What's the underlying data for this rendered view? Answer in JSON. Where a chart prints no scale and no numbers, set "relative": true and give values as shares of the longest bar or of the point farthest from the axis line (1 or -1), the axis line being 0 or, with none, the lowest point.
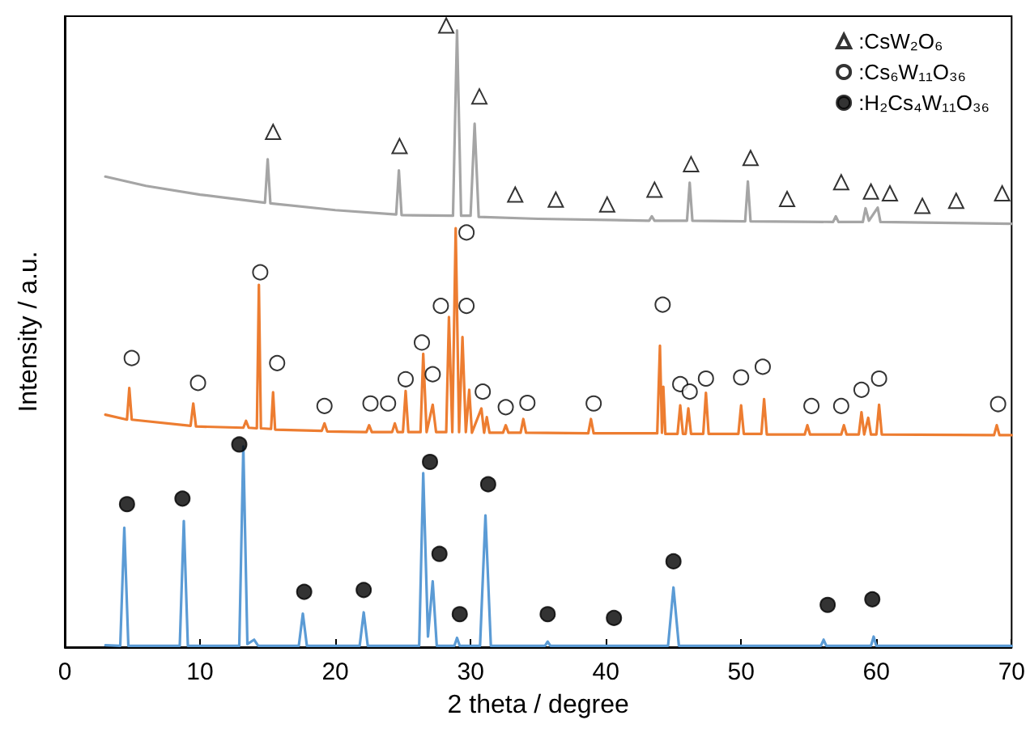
{
  "chart_data": {
    "type": "line",
    "relative": true,
    "xlabel": "2 theta / degree",
    "ylabel": "Intensity / a.u.",
    "xlim": [
      0,
      70
    ],
    "xticks": [
      0,
      10,
      20,
      30,
      40,
      50,
      60,
      70
    ],
    "grid": false,
    "legend": "top right",
    "line_style": "solid",
    "series": [
      {
        "color": "#5b9bd5",
        "x": [
          3.0,
          4.1,
          4.4,
          4.7,
          8.5,
          8.8,
          9.1,
          12.9,
          13.2,
          13.5,
          14.0,
          14.3,
          17.3,
          17.6,
          17.9,
          21.8,
          22.1,
          22.4,
          26.2,
          26.5,
          26.85,
          27.2,
          27.5,
          28.8,
          29.0,
          29.2,
          30.7,
          31.1,
          31.5,
          35.5,
          35.7,
          35.9,
          44.6,
          45.0,
          45.4,
          55.9,
          56.1,
          56.3,
          59.6,
          59.8,
          60.0,
          70
        ],
        "values": [
          0.003,
          0.002,
          0.192,
          0.002,
          0.002,
          0.203,
          0.002,
          0.002,
          0.323,
          0.005,
          0.012,
          0.002,
          0.002,
          0.054,
          0.002,
          0.002,
          0.056,
          0.002,
          0.002,
          0.28,
          0.017,
          0.106,
          0.002,
          0.002,
          0.015,
          0.002,
          0.002,
          0.212,
          0.002,
          0.002,
          0.009,
          0.002,
          0.002,
          0.096,
          0.002,
          0.002,
          0.012,
          0.002,
          0.002,
          0.017,
          0.002,
          0.002
        ]
      },
      {
        "color": "#ed7d31",
        "x": [
          3.0,
          4.6,
          4.77,
          4.95,
          9.3,
          9.5,
          9.7,
          13.2,
          13.4,
          13.6,
          14.2,
          14.35,
          14.5,
          15.25,
          15.4,
          15.55,
          19.0,
          19.2,
          19.4,
          22.3,
          22.5,
          22.7,
          24.2,
          24.4,
          24.6,
          25.0,
          25.2,
          25.4,
          26.3,
          26.5,
          26.75,
          27.2,
          27.45,
          28.2,
          28.4,
          28.65,
          28.9,
          29.15,
          29.4,
          29.65,
          29.9,
          30.1,
          30.8,
          31.0,
          31.2,
          31.4,
          32.4,
          32.6,
          32.8,
          33.7,
          33.9,
          34.1,
          38.7,
          38.9,
          39.1,
          43.8,
          44.0,
          44.15,
          44.25,
          44.4,
          45.3,
          45.5,
          45.7,
          45.9,
          46.1,
          46.3,
          47.2,
          47.4,
          47.6,
          49.8,
          50.0,
          50.2,
          51.5,
          51.7,
          51.9,
          54.7,
          54.9,
          55.1,
          57.4,
          57.6,
          57.8,
          58.7,
          58.9,
          59.1,
          59.4,
          59.6,
          60.0,
          60.2,
          60.4,
          68.7,
          68.9,
          69.1,
          70
        ],
        "values": [
          0.374,
          0.366,
          0.417,
          0.366,
          0.356,
          0.392,
          0.355,
          0.353,
          0.364,
          0.353,
          0.352,
          0.583,
          0.352,
          0.351,
          0.41,
          0.35,
          0.348,
          0.36,
          0.347,
          0.346,
          0.357,
          0.346,
          0.346,
          0.36,
          0.346,
          0.346,
          0.412,
          0.346,
          0.346,
          0.472,
          0.346,
          0.39,
          0.346,
          0.346,
          0.531,
          0.346,
          0.674,
          0.346,
          0.499,
          0.346,
          0.414,
          0.345,
          0.384,
          0.345,
          0.37,
          0.345,
          0.345,
          0.357,
          0.345,
          0.345,
          0.367,
          0.345,
          0.344,
          0.367,
          0.344,
          0.344,
          0.485,
          0.345,
          0.419,
          0.343,
          0.343,
          0.389,
          0.343,
          0.343,
          0.384,
          0.343,
          0.343,
          0.409,
          0.343,
          0.343,
          0.389,
          0.343,
          0.343,
          0.399,
          0.342,
          0.342,
          0.357,
          0.342,
          0.342,
          0.357,
          0.342,
          0.342,
          0.378,
          0.342,
          0.369,
          0.342,
          0.342,
          0.39,
          0.342,
          0.341,
          0.357,
          0.341,
          0.341
        ]
      },
      {
        "color": "#a5a5a5",
        "x": [
          3.0,
          6,
          10,
          14.8,
          15.0,
          15.2,
          20,
          24.5,
          24.7,
          24.9,
          28.7,
          29.0,
          29.3,
          30.0,
          30.3,
          30.6,
          35,
          43.2,
          43.4,
          43.6,
          46.0,
          46.2,
          46.4,
          50.3,
          50.5,
          50.7,
          56.8,
          57.0,
          57.2,
          59.0,
          59.2,
          59.45,
          60.1,
          60.3,
          70
        ],
        "values": [
          0.757,
          0.742,
          0.728,
          0.715,
          0.785,
          0.714,
          0.703,
          0.696,
          0.767,
          0.695,
          0.694,
          0.992,
          0.694,
          0.694,
          0.842,
          0.692,
          0.689,
          0.686,
          0.693,
          0.686,
          0.686,
          0.747,
          0.686,
          0.685,
          0.749,
          0.685,
          0.684,
          0.693,
          0.684,
          0.684,
          0.706,
          0.686,
          0.707,
          0.684,
          0.681
        ]
      },
      {
        "type": "scatter",
        "name": ":CsW₂O₆",
        "marker": "triangle",
        "color": "#ffffff",
        "x": [
          15.4,
          24.75,
          28.2,
          30.65,
          33.3,
          36.3,
          40.1,
          43.6,
          46.3,
          50.7,
          53.4,
          57.4,
          59.6,
          61.0,
          63.4,
          65.9,
          69.3
        ],
        "values": [
          0.829,
          0.806,
          1.0,
          0.886,
          0.728,
          0.72,
          0.712,
          0.736,
          0.777,
          0.787,
          0.721,
          0.748,
          0.733,
          0.73,
          0.71,
          0.718,
          0.73
        ]
      },
      {
        "type": "scatter",
        "name": ":Cs₆W₁₁O₃₆",
        "marker": "circle",
        "color": "#ffffff",
        "x": [
          4.95,
          9.85,
          14.45,
          15.7,
          19.2,
          22.6,
          23.9,
          25.2,
          26.4,
          27.2,
          27.8,
          29.7,
          29.7,
          30.9,
          32.6,
          34.2,
          39.1,
          44.2,
          45.5,
          46.2,
          47.4,
          50.0,
          51.6,
          55.2,
          57.4,
          58.9,
          60.2,
          69.0
        ],
        "values": [
          0.465,
          0.425,
          0.603,
          0.457,
          0.388,
          0.392,
          0.392,
          0.431,
          0.49,
          0.439,
          0.549,
          0.549,
          0.667,
          0.411,
          0.386,
          0.393,
          0.392,
          0.551,
          0.423,
          0.411,
          0.432,
          0.434,
          0.451,
          0.388,
          0.388,
          0.414,
          0.432,
          0.391
        ]
      },
      {
        "type": "scatter",
        "name": ":H₂Cs₄W₁₁O₃₆",
        "marker": "circle",
        "color": "#000000",
        "x": [
          4.6,
          8.7,
          12.9,
          17.7,
          22.1,
          27.0,
          27.7,
          29.2,
          31.3,
          35.7,
          40.6,
          45.0,
          56.4,
          59.7
        ],
        "values": [
          0.23,
          0.239,
          0.326,
          0.089,
          0.092,
          0.298,
          0.15,
          0.053,
          0.262,
          0.053,
          0.047,
          0.138,
          0.068,
          0.077
        ]
      }
    ]
  }
}
